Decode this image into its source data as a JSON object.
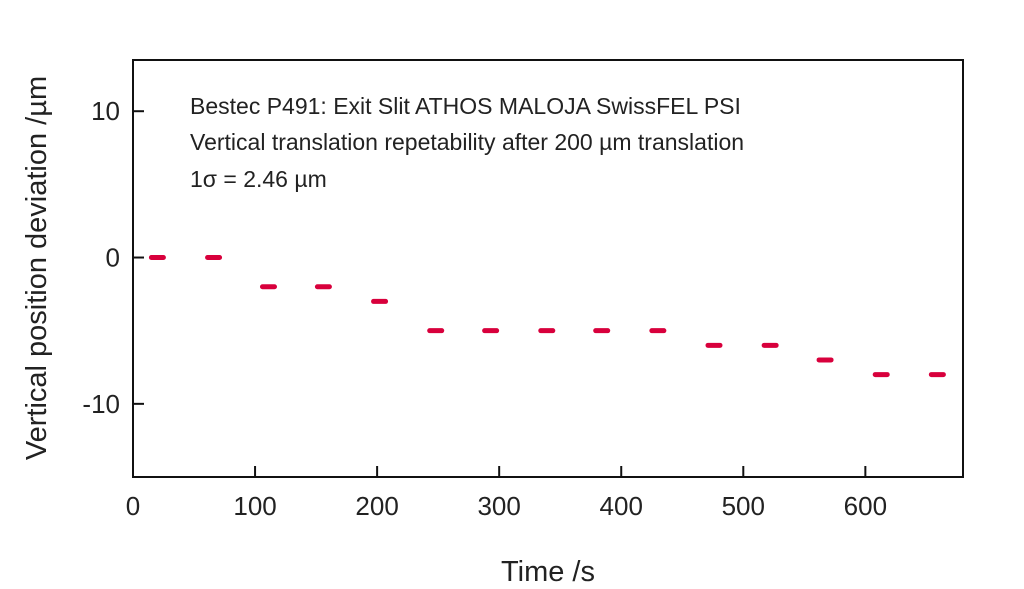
{
  "chart_data": {
    "type": "scatter",
    "title": "",
    "annotations": [
      "Bestec P491: Exit Slit ATHOS MALOJA SwissFEL PSI",
      "Vertical translation repetability after 200 µm translation",
      "1σ = 2.46 µm"
    ],
    "xlabel": "Time /s",
    "ylabel": "Vertical position deviation /µm",
    "xlim": [
      0,
      680
    ],
    "ylim": [
      -15,
      13.5
    ],
    "xticks": [
      0,
      100,
      200,
      300,
      400,
      500,
      600
    ],
    "xtick_labels": [
      "0",
      "100",
      "200",
      "300",
      "400",
      "500",
      "600"
    ],
    "yticks": [
      10,
      0,
      -10
    ],
    "ytick_labels": [
      "10",
      "0",
      "-10"
    ],
    "grid": false,
    "marker_color": "#d8003c",
    "series": [
      {
        "name": "position deviation",
        "x": [
          20,
          66,
          111,
          156,
          202,
          248,
          293,
          339,
          384,
          430,
          476,
          522,
          567,
          613,
          659
        ],
        "y": [
          0,
          0,
          -2,
          -2,
          -3,
          -5,
          -5,
          -5,
          -5,
          -5,
          -6,
          -6,
          -7,
          -8,
          -8
        ]
      }
    ]
  }
}
